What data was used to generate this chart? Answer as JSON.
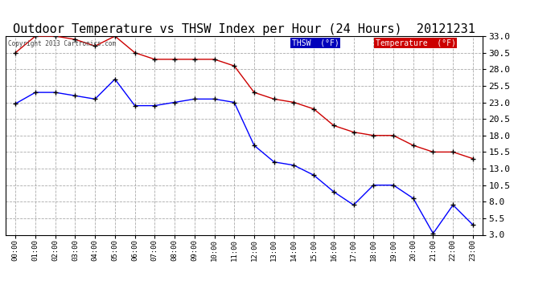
{
  "title": "Outdoor Temperature vs THSW Index per Hour (24 Hours)  20121231",
  "copyright": "Copyright 2013 Cartronics.com",
  "x_labels": [
    "00:00",
    "01:00",
    "02:00",
    "03:00",
    "04:00",
    "05:00",
    "06:00",
    "07:00",
    "08:00",
    "09:00",
    "10:00",
    "11:00",
    "12:00",
    "13:00",
    "14:00",
    "15:00",
    "16:00",
    "17:00",
    "18:00",
    "19:00",
    "20:00",
    "21:00",
    "22:00",
    "23:00"
  ],
  "thsw_values": [
    22.8,
    24.5,
    24.5,
    24.0,
    23.5,
    26.5,
    22.5,
    22.5,
    23.0,
    23.5,
    23.5,
    23.0,
    16.5,
    14.0,
    13.5,
    12.0,
    9.5,
    7.5,
    10.5,
    10.5,
    8.5,
    3.2,
    7.5,
    4.5
  ],
  "temp_values": [
    30.5,
    33.0,
    33.0,
    32.5,
    31.5,
    33.0,
    30.5,
    29.5,
    29.5,
    29.5,
    29.5,
    28.5,
    24.5,
    23.5,
    23.0,
    22.0,
    19.5,
    18.5,
    18.0,
    18.0,
    16.5,
    15.5,
    15.5,
    14.5
  ],
  "thsw_color": "#0000ff",
  "temp_color": "#cc0000",
  "marker_color": "#000000",
  "background_color": "#ffffff",
  "grid_color": "#aaaaaa",
  "ylim": [
    3.0,
    33.0
  ],
  "yticks": [
    3.0,
    5.5,
    8.0,
    10.5,
    13.0,
    15.5,
    18.0,
    20.5,
    23.0,
    25.5,
    28.0,
    30.5,
    33.0
  ],
  "title_fontsize": 11,
  "legend_thsw_bg": "#0000ff",
  "legend_thsw_text": "THSW  (°F)",
  "legend_temp_bg": "#cc0000",
  "legend_temp_text": "Temperature  (°F)"
}
